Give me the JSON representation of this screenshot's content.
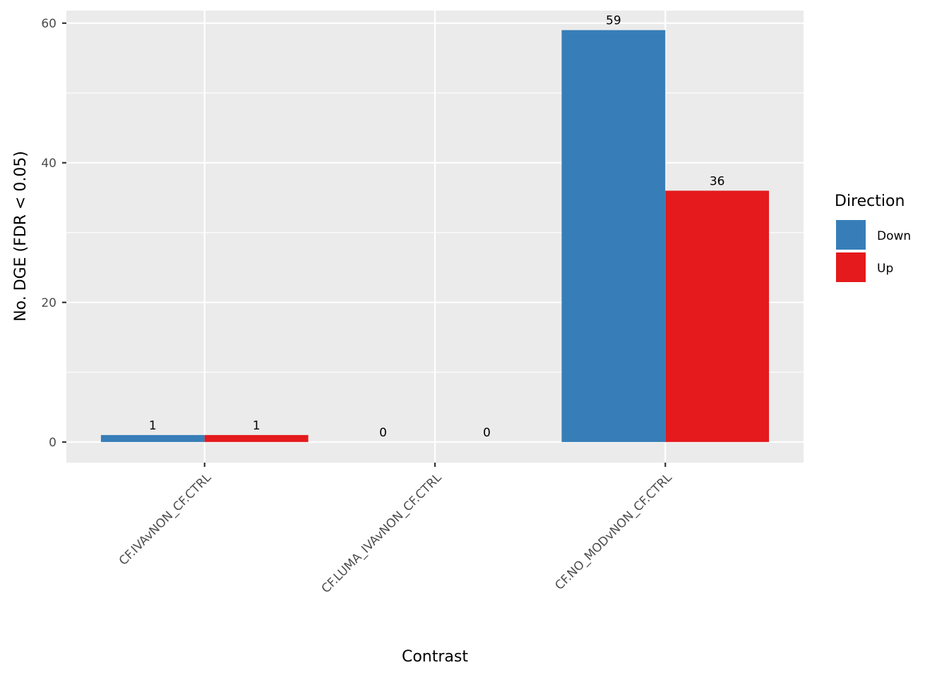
{
  "chart_data": {
    "type": "bar",
    "xlabel": "Contrast",
    "ylabel": "No. DGE (FDR < 0.05)",
    "categories": [
      "CF.IVAvNON_CF.CTRL",
      "CF.LUMA_IVAvNON_CF.CTRL",
      "CF.NO_MODvNON_CF.CTRL"
    ],
    "series": [
      {
        "name": "Down",
        "values": [
          1,
          0,
          59
        ],
        "color": "#377EB8"
      },
      {
        "name": "Up",
        "values": [
          1,
          0,
          36
        ],
        "color": "#E41A1C"
      }
    ],
    "ylim": [
      -2.95,
      61.8
    ],
    "yticks": [
      0,
      20,
      40,
      60
    ],
    "grid": true,
    "legend": {
      "title": "Direction",
      "placement": "right"
    },
    "panel_background": "#EBEBEB"
  }
}
